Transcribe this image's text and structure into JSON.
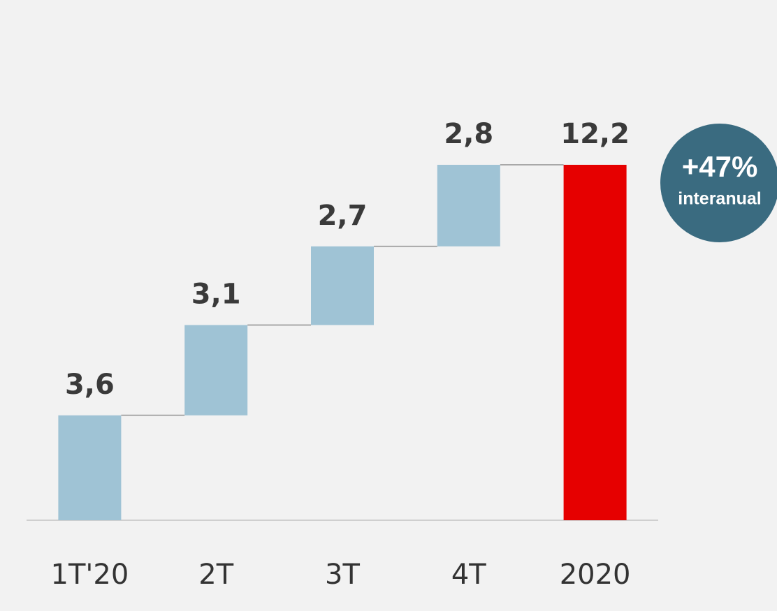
{
  "chart_data": {
    "type": "waterfall",
    "categories": [
      "1T'20",
      "2T",
      "3T",
      "4T",
      "2020"
    ],
    "values": [
      3.6,
      3.1,
      2.7,
      2.8,
      12.2
    ],
    "value_labels": [
      "3,6",
      "3,1",
      "2,7",
      "2,8",
      "12,2"
    ],
    "colors": [
      "#9fc3d5",
      "#9fc3d5",
      "#9fc3d5",
      "#9fc3d5",
      "#e60000"
    ],
    "annotation": {
      "text": "+47%",
      "subtext": "interanual",
      "color": "#3a6b80"
    }
  }
}
